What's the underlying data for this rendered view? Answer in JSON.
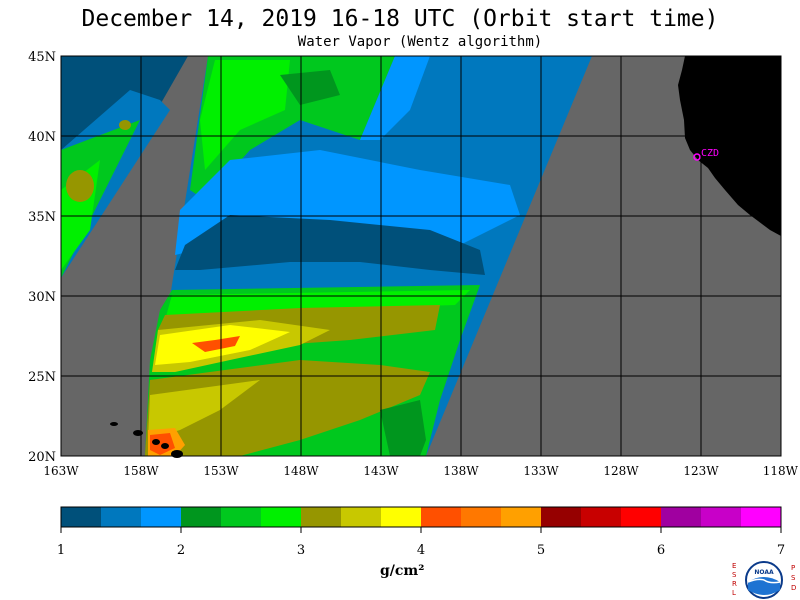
{
  "title": "December 14, 2019  16-18 UTC  (Orbit start time)",
  "subtitle": "Water Vapor (Wentz algorithm)",
  "map": {
    "lat_labels": [
      "45N",
      "40N",
      "35N",
      "30N",
      "25N",
      "20N"
    ],
    "lon_labels": [
      "163W",
      "158W",
      "153W",
      "148W",
      "143W",
      "138W",
      "133W",
      "128W",
      "123W",
      "118W"
    ],
    "station_label": "CZD",
    "lon_range": [
      -163,
      -118
    ],
    "lat_range": [
      20,
      45
    ],
    "grid_step_deg": 5,
    "land_color": "#000000",
    "nodata_color": "#666666",
    "station_color": "#ff00ff"
  },
  "colorbar": {
    "colors": [
      "#00507a",
      "#0078be",
      "#0096ff",
      "#00961e",
      "#00c81e",
      "#00f000",
      "#969600",
      "#c8c800",
      "#ffff00",
      "#ff5000",
      "#ff7800",
      "#ffa000",
      "#960000",
      "#c80000",
      "#ff0000",
      "#a000a0",
      "#c800c8",
      "#ff00ff"
    ],
    "tick_labels": [
      "1",
      "2",
      "3",
      "4",
      "5",
      "6",
      "7"
    ],
    "unit_label": "g/cm²"
  },
  "logo": {
    "left_letters": "ESRL",
    "right_letters": "PSD",
    "center_text": "NOAA"
  }
}
